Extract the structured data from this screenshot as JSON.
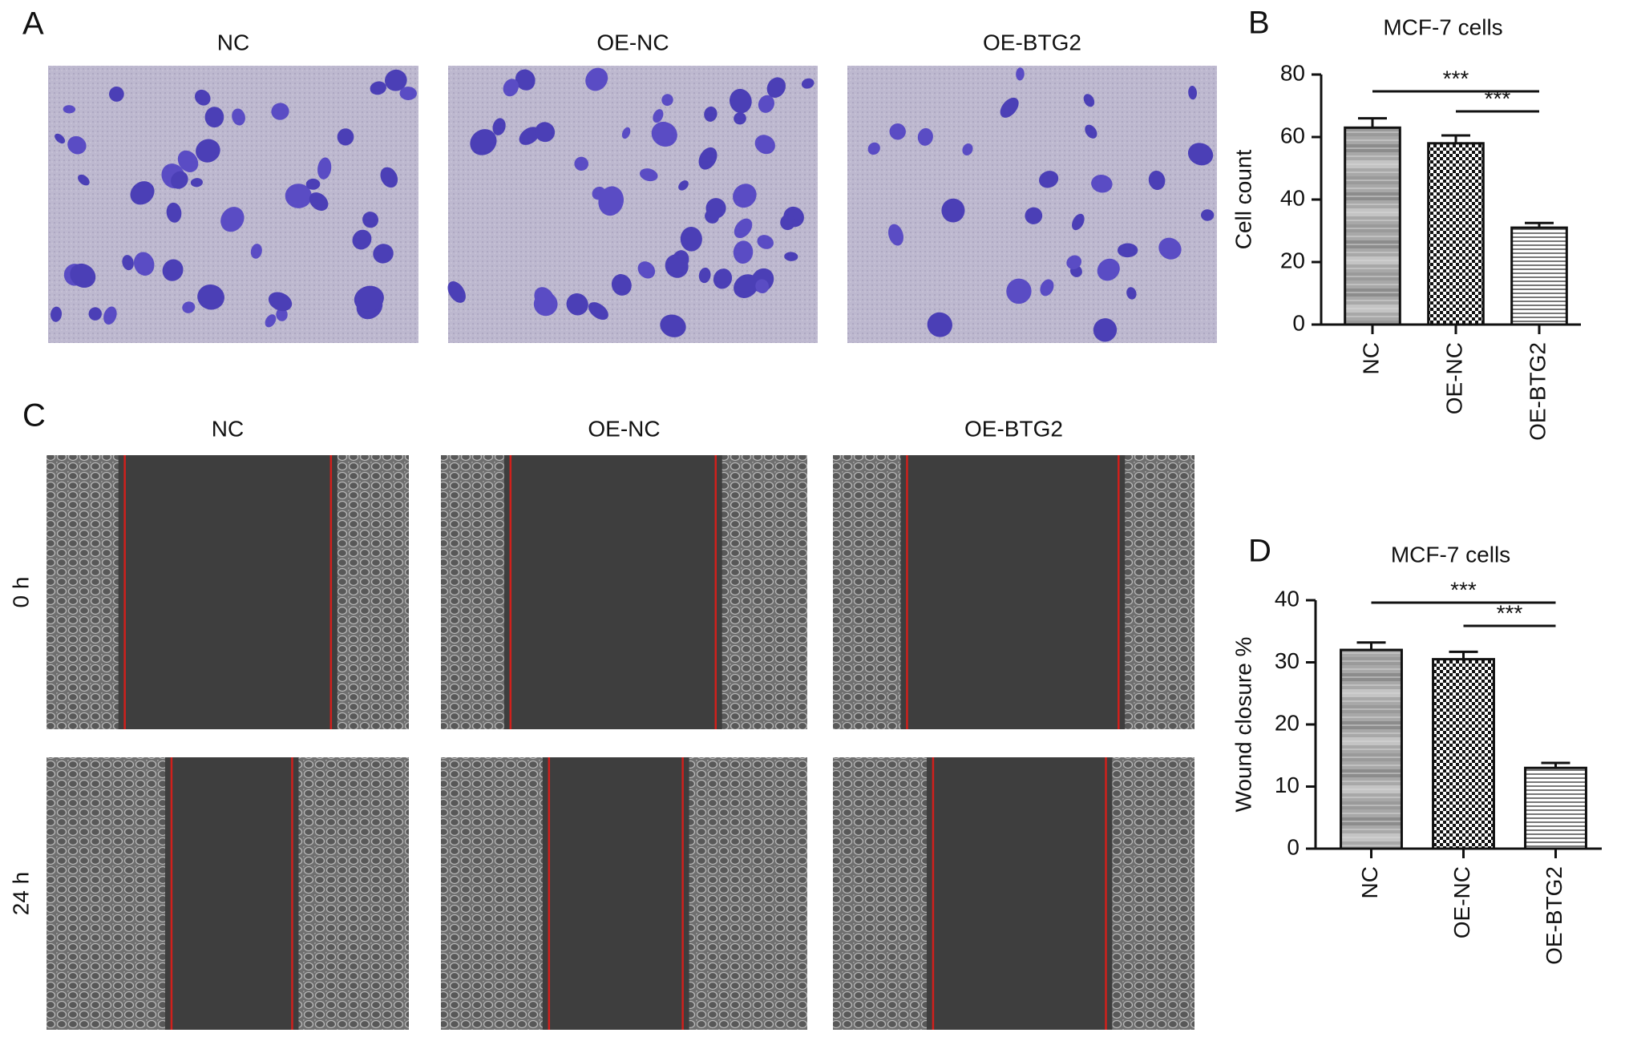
{
  "panels": {
    "A": {
      "letter": "A",
      "columns": [
        "NC",
        "OE-NC",
        "OE-BTG2"
      ]
    },
    "C": {
      "letter": "C",
      "columns": [
        "NC",
        "OE-NC",
        "OE-BTG2"
      ],
      "rows": [
        "0 h",
        "24 h"
      ]
    },
    "B": {
      "letter": "B"
    },
    "D": {
      "letter": "D"
    }
  },
  "chart_data": [
    {
      "type": "bar",
      "title": "MCF-7 cells",
      "y_label": "Cell count",
      "categories": [
        "NC",
        "OE-NC",
        "OE-BTG2"
      ],
      "values": [
        63,
        58,
        31
      ],
      "errors": [
        3,
        2.5,
        1.5
      ],
      "ylim": [
        0,
        80
      ],
      "yticks": [
        0,
        20,
        40,
        60,
        80
      ],
      "annotations": [
        "***",
        "***"
      ]
    },
    {
      "type": "bar",
      "title": "MCF-7 cells",
      "y_label": "Wound closure %",
      "categories": [
        "NC",
        "OE-NC",
        "OE-BTG2"
      ],
      "values": [
        32,
        30.5,
        13
      ],
      "errors": [
        1.2,
        1.2,
        0.8
      ],
      "ylim": [
        0,
        40
      ],
      "yticks": [
        0,
        10,
        20,
        30,
        40
      ],
      "annotations": [
        "***",
        "***"
      ]
    }
  ]
}
